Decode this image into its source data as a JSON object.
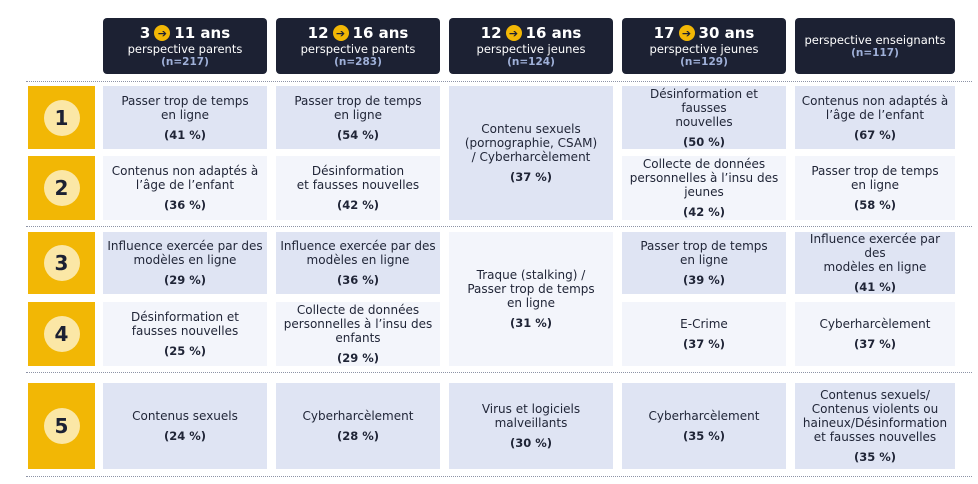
{
  "headers": [
    {
      "age_from": "3",
      "age_to": "11 ans",
      "perspective": "perspective parents",
      "n": "(n=217)"
    },
    {
      "age_from": "12",
      "age_to": "16 ans",
      "perspective": "perspective parents",
      "n": "(n=283)"
    },
    {
      "age_from": "12",
      "age_to": "16 ans",
      "perspective": "perspective jeunes",
      "n": "(n=124)"
    },
    {
      "age_from": "17",
      "age_to": "30 ans",
      "perspective": "perspective jeunes",
      "n": "(n=129)"
    },
    {
      "perspective": "perspective enseignants",
      "n": "(n=117)"
    }
  ],
  "arrow_symbol": "➔",
  "ranks": [
    "1",
    "2",
    "3",
    "4",
    "5"
  ],
  "colors": {
    "header_bg": "#1c2133",
    "rank_bg": "#f2b705",
    "cell_blue": "#dfe4f3",
    "cell_white": "#f3f5fb"
  },
  "cells": {
    "c0r1": {
      "text": "Passer trop de temps\nen ligne",
      "pct": "(41 %)"
    },
    "c0r2": {
      "text": "Contenus non adaptés à\nl’âge de l’enfant",
      "pct": "(36 %)"
    },
    "c0r3": {
      "text": "Influence exercée par des\nmodèles en ligne",
      "pct": "(29 %)"
    },
    "c0r4": {
      "text": "Désinformation et\nfausses nouvelles",
      "pct": "(25 %)"
    },
    "c0r5": {
      "text": "Contenus sexuels",
      "pct": "(24 %)"
    },
    "c1r1": {
      "text": "Passer trop de temps\nen ligne",
      "pct": "(54 %)"
    },
    "c1r2": {
      "text": "Désinformation\net fausses nouvelles",
      "pct": "(42 %)"
    },
    "c1r3": {
      "text": "Influence exercée par des\nmodèles en ligne",
      "pct": "(36 %)"
    },
    "c1r4": {
      "text": "Collecte de données\npersonnelles à l’insu des\nenfants",
      "pct": "(29 %)"
    },
    "c1r5": {
      "text": "Cyberharcèlement",
      "pct": "(28 %)"
    },
    "c2r12": {
      "text": "Contenu sexuels\n(pornographie, CSAM)\n/ Cyberharcèlement",
      "pct": "(37 %)"
    },
    "c2r34": {
      "text": "Traque (stalking) /\nPasser trop de temps\nen ligne",
      "pct": "(31 %)"
    },
    "c2r5": {
      "text": "Virus et logiciels\nmalveillants",
      "pct": "(30 %)"
    },
    "c3r1": {
      "text": "Désinformation et fausses\nnouvelles",
      "pct": "(50 %)"
    },
    "c3r2": {
      "text": "Collecte de données\npersonnelles à l’insu des\njeunes",
      "pct": "(42 %)"
    },
    "c3r3": {
      "text": "Passer trop de temps\nen ligne",
      "pct": "(39 %)"
    },
    "c3r4": {
      "text": "E-Crime",
      "pct": "(37 %)"
    },
    "c3r5": {
      "text": "Cyberharcèlement",
      "pct": "(35 %)"
    },
    "c4r1": {
      "text": "Contenus non adaptés à\nl’âge de l’enfant",
      "pct": "(67 %)"
    },
    "c4r2": {
      "text": "Passer trop de temps\nen ligne",
      "pct": "(58 %)"
    },
    "c4r3": {
      "text": "Influence exercée par des\nmodèles en ligne",
      "pct": "(41 %)"
    },
    "c4r4": {
      "text": "Cyberharcèlement",
      "pct": "(37 %)"
    },
    "c4r5": {
      "text": "Contenus sexuels/\nContenus violents ou\nhaineux/Désinformation\net fausses nouvelles",
      "pct": "(35 %)"
    }
  }
}
